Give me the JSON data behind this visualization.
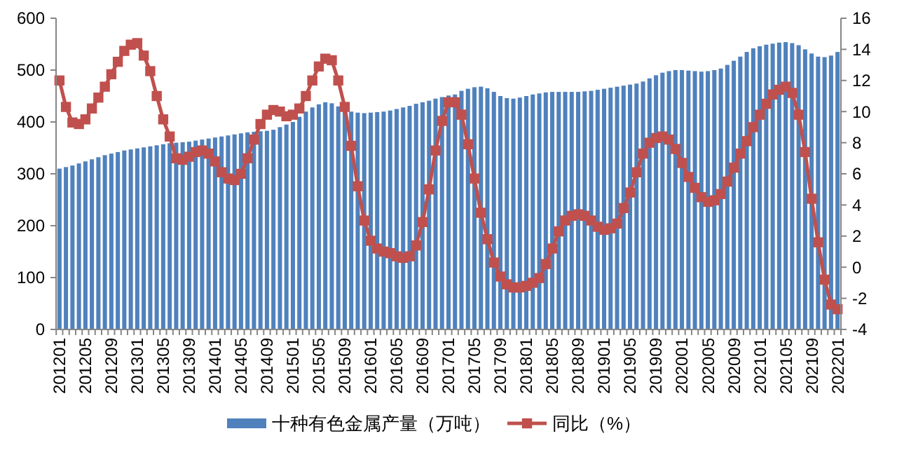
{
  "chart_data": {
    "type": "bar",
    "categories": [
      "201201",
      null,
      null,
      null,
      "201205",
      null,
      null,
      null,
      "201209",
      null,
      null,
      null,
      "201301",
      null,
      null,
      null,
      "201305",
      null,
      null,
      null,
      "201309",
      null,
      null,
      null,
      "201401",
      null,
      null,
      null,
      "201405",
      null,
      null,
      null,
      "201409",
      null,
      null,
      null,
      "201501",
      null,
      null,
      null,
      "201505",
      null,
      null,
      null,
      "201509",
      null,
      null,
      null,
      "201601",
      null,
      null,
      null,
      "201605",
      null,
      null,
      null,
      "201609",
      null,
      null,
      null,
      "201701",
      null,
      null,
      null,
      "201705",
      null,
      null,
      null,
      "201709",
      null,
      null,
      null,
      "201801",
      null,
      null,
      null,
      "201805",
      null,
      null,
      null,
      "201809",
      null,
      null,
      null,
      "201901",
      null,
      null,
      null,
      "201905",
      null,
      null,
      null,
      "201909",
      null,
      null,
      null,
      "202001",
      null,
      null,
      null,
      "202005",
      null,
      null,
      null,
      "202009",
      null,
      null,
      null,
      "202101",
      null,
      null,
      null,
      "202105",
      null,
      null,
      null,
      "202109",
      null,
      null,
      null,
      "202201"
    ],
    "series": [
      {
        "name": "十种有色金属产量（万吨）",
        "color": "#4f81bd",
        "values": [
          310,
          313,
          316,
          320,
          324,
          328,
          332,
          336,
          339,
          342,
          345,
          347,
          349,
          351,
          353,
          355,
          357,
          359,
          360,
          361,
          362,
          364,
          366,
          368,
          370,
          372,
          374,
          376,
          378,
          380,
          381,
          382,
          383,
          385,
          390,
          395,
          400,
          410,
          420,
          428,
          434,
          438,
          436,
          430,
          425,
          420,
          418,
          417,
          418,
          419,
          420,
          422,
          425,
          428,
          431,
          435,
          438,
          441,
          445,
          448,
          451,
          453,
          460,
          464,
          467,
          468,
          465,
          458,
          450,
          446,
          445,
          447,
          450,
          453,
          455,
          457,
          458,
          458,
          458,
          458,
          458,
          459,
          460,
          462,
          464,
          466,
          468,
          470,
          472,
          474,
          478,
          484,
          490,
          495,
          498,
          500,
          500,
          499,
          498,
          497,
          498,
          500,
          503,
          510,
          518,
          526,
          535,
          542,
          546,
          549,
          551,
          553,
          554,
          552,
          548,
          540,
          532,
          526,
          525,
          528,
          535
        ]
      },
      {
        "name": "同比（%）",
        "type": "line",
        "axis": "y2",
        "color": "#c0504d",
        "marker": "square",
        "values": [
          12.0,
          10.3,
          9.3,
          9.2,
          9.5,
          10.2,
          10.9,
          11.6,
          12.4,
          13.2,
          13.9,
          14.3,
          14.4,
          13.6,
          12.6,
          11.0,
          9.5,
          8.4,
          7.0,
          6.9,
          7.1,
          7.4,
          7.5,
          7.3,
          6.8,
          6.1,
          5.7,
          5.6,
          6.0,
          7.0,
          8.2,
          9.2,
          9.8,
          10.1,
          10.0,
          9.7,
          9.8,
          10.2,
          11.0,
          12.0,
          12.9,
          13.4,
          13.3,
          12.0,
          10.3,
          7.8,
          5.2,
          3.0,
          1.7,
          1.2,
          1.0,
          0.9,
          0.7,
          0.6,
          0.7,
          1.4,
          2.9,
          5.0,
          7.5,
          9.4,
          10.6,
          10.6,
          9.8,
          7.9,
          5.7,
          3.5,
          1.8,
          0.3,
          -0.6,
          -1.1,
          -1.3,
          -1.3,
          -1.2,
          -1.0,
          -0.7,
          0.2,
          1.2,
          2.3,
          3.0,
          3.3,
          3.4,
          3.3,
          3.0,
          2.6,
          2.4,
          2.5,
          2.8,
          3.8,
          4.8,
          6.1,
          7.3,
          8.0,
          8.3,
          8.4,
          8.2,
          7.6,
          6.7,
          5.8,
          5.1,
          4.5,
          4.2,
          4.3,
          4.7,
          5.5,
          6.4,
          7.3,
          8.1,
          9.0,
          9.8,
          10.5,
          11.1,
          11.4,
          11.6,
          11.2,
          9.8,
          7.4,
          4.4,
          1.6,
          -0.8,
          -2.4,
          -2.7
        ]
      }
    ],
    "ylim": [
      0,
      600
    ],
    "yticks": [
      0,
      100,
      200,
      300,
      400,
      500,
      600
    ],
    "y2lim": [
      -4,
      16
    ],
    "y2ticks": [
      -4,
      -2,
      0,
      2,
      4,
      6,
      8,
      10,
      12,
      14,
      16
    ],
    "grid": false,
    "legend": "bottom"
  }
}
